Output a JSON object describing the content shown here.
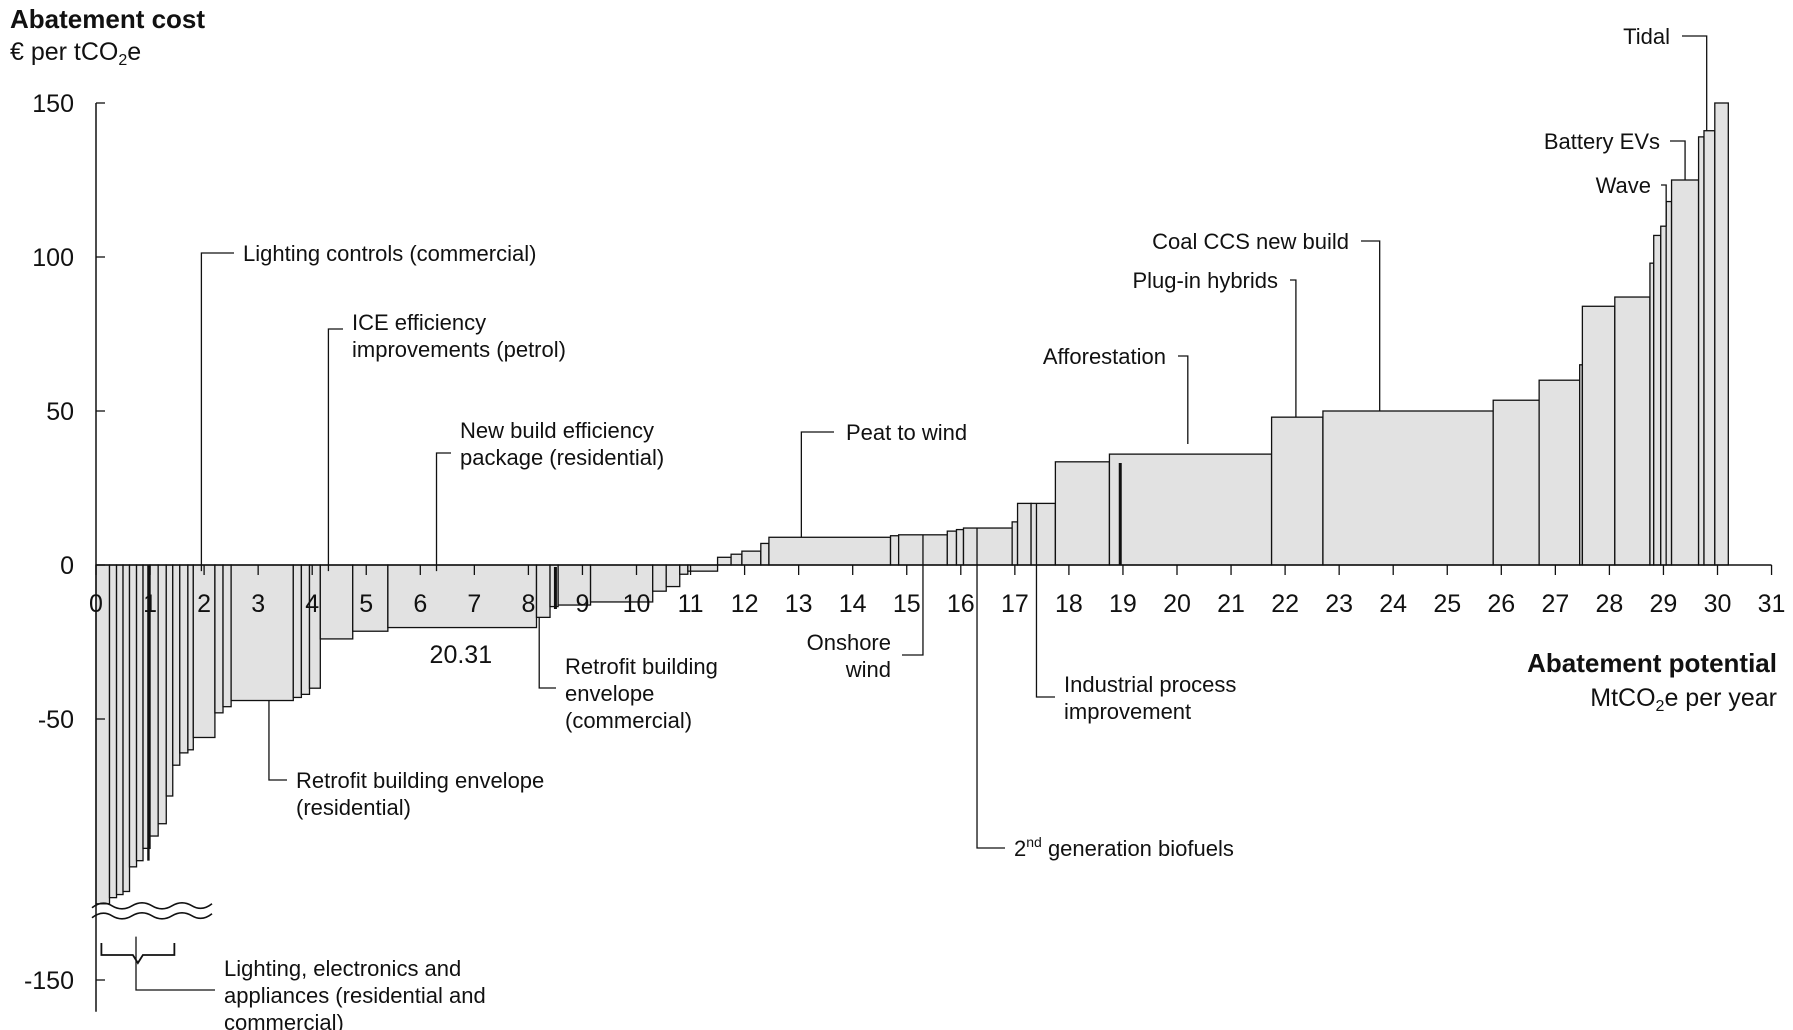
{
  "chart_data": {
    "type": "bar",
    "subtype": "marginal-abatement-cost-curve",
    "y_title": "Abatement cost",
    "y_unit": "€ per tCO2e",
    "x_title": "Abatement potential",
    "x_unit": "MtCO2e per year",
    "ylim": [
      -150,
      150
    ],
    "xlim": [
      0,
      31
    ],
    "yticks": [
      "150",
      "100",
      "50",
      "0",
      "-50",
      "-150"
    ],
    "xticks": [
      "0",
      "1",
      "2",
      "3",
      "4",
      "5",
      "6",
      "7",
      "8",
      "9",
      "10",
      "11",
      "12",
      "13",
      "14",
      "15",
      "16",
      "17",
      "18",
      "19",
      "20",
      "21",
      "22",
      "23",
      "24",
      "25",
      "26",
      "27",
      "27",
      "28",
      "29",
      "30",
      "31"
    ],
    "axis_break": true,
    "annotation_value": "20.31",
    "bars": [
      {
        "x0": 0.0,
        "x1": 0.25,
        "y": -110
      },
      {
        "x0": 0.25,
        "x1": 0.38,
        "y": -108
      },
      {
        "x0": 0.38,
        "x1": 0.5,
        "y": -107
      },
      {
        "x0": 0.5,
        "x1": 0.62,
        "y": -106
      },
      {
        "x0": 0.62,
        "x1": 0.75,
        "y": -98
      },
      {
        "x0": 0.75,
        "x1": 0.87,
        "y": -96
      },
      {
        "x0": 0.87,
        "x1": 1.0,
        "y": -92
      },
      {
        "x0": 1.0,
        "x1": 1.15,
        "y": -88
      },
      {
        "x0": 1.15,
        "x1": 1.3,
        "y": -84
      },
      {
        "x0": 1.3,
        "x1": 1.42,
        "y": -75
      },
      {
        "x0": 1.42,
        "x1": 1.55,
        "y": -65
      },
      {
        "x0": 1.55,
        "x1": 1.7,
        "y": -61
      },
      {
        "x0": 1.7,
        "x1": 1.8,
        "y": -60
      },
      {
        "x0": 1.8,
        "x1": 2.2,
        "y": -56
      },
      {
        "x0": 2.2,
        "x1": 2.35,
        "y": -48
      },
      {
        "x0": 2.35,
        "x1": 2.5,
        "y": -46
      },
      {
        "x0": 2.5,
        "x1": 3.65,
        "y": -44
      },
      {
        "x0": 3.65,
        "x1": 3.8,
        "y": -43
      },
      {
        "x0": 3.8,
        "x1": 3.95,
        "y": -42
      },
      {
        "x0": 3.95,
        "x1": 4.15,
        "y": -40
      },
      {
        "x0": 4.15,
        "x1": 4.75,
        "y": -24
      },
      {
        "x0": 4.75,
        "x1": 5.4,
        "y": -21.5
      },
      {
        "x0": 5.4,
        "x1": 8.15,
        "y": -20.31
      },
      {
        "x0": 8.15,
        "x1": 8.4,
        "y": -17
      },
      {
        "x0": 8.4,
        "x1": 8.55,
        "y": -13.5
      },
      {
        "x0": 8.55,
        "x1": 9.15,
        "y": -13
      },
      {
        "x0": 9.15,
        "x1": 10.3,
        "y": -12
      },
      {
        "x0": 10.3,
        "x1": 10.55,
        "y": -8.5
      },
      {
        "x0": 10.55,
        "x1": 10.8,
        "y": -7
      },
      {
        "x0": 10.8,
        "x1": 10.95,
        "y": -3
      },
      {
        "x0": 10.95,
        "x1": 11.5,
        "y": -2
      },
      {
        "x0": 11.5,
        "x1": 11.75,
        "y": 2.5
      },
      {
        "x0": 11.75,
        "x1": 11.95,
        "y": 3.5
      },
      {
        "x0": 11.95,
        "x1": 12.3,
        "y": 4.5
      },
      {
        "x0": 12.3,
        "x1": 12.45,
        "y": 7
      },
      {
        "x0": 12.45,
        "x1": 14.7,
        "y": 9
      },
      {
        "x0": 14.7,
        "x1": 14.85,
        "y": 9.5
      },
      {
        "x0": 14.85,
        "x1": 15.75,
        "y": 9.8
      },
      {
        "x0": 15.75,
        "x1": 15.92,
        "y": 11
      },
      {
        "x0": 15.92,
        "x1": 16.05,
        "y": 11.5
      },
      {
        "x0": 16.05,
        "x1": 16.95,
        "y": 12
      },
      {
        "x0": 16.95,
        "x1": 17.05,
        "y": 14
      },
      {
        "x0": 17.05,
        "x1": 17.3,
        "y": 20
      },
      {
        "x0": 17.3,
        "x1": 17.75,
        "y": 20
      },
      {
        "x0": 17.75,
        "x1": 18.75,
        "y": 33.5
      },
      {
        "x0": 18.75,
        "x1": 21.75,
        "y": 36
      },
      {
        "x0": 21.75,
        "x1": 22.7,
        "y": 48
      },
      {
        "x0": 22.7,
        "x1": 25.85,
        "y": 50
      },
      {
        "x0": 25.85,
        "x1": 26.7,
        "y": 53.5
      },
      {
        "x0": 26.7,
        "x1": 27.45,
        "y": 60
      },
      {
        "x0": 27.45,
        "x1": 27.5,
        "y": 65
      },
      {
        "x0": 27.5,
        "x1": 28.1,
        "y": 84
      },
      {
        "x0": 28.1,
        "x1": 28.75,
        "y": 87
      },
      {
        "x0": 28.75,
        "x1": 28.82,
        "y": 98
      },
      {
        "x0": 28.82,
        "x1": 28.95,
        "y": 107
      },
      {
        "x0": 28.95,
        "x1": 29.05,
        "y": 110
      },
      {
        "x0": 29.05,
        "x1": 29.15,
        "y": 118
      },
      {
        "x0": 29.15,
        "x1": 29.65,
        "y": 125
      },
      {
        "x0": 29.65,
        "x1": 29.75,
        "y": 139
      },
      {
        "x0": 29.75,
        "x1": 29.95,
        "y": 141
      },
      {
        "x0": 29.95,
        "x1": 30.2,
        "y": 150
      }
    ],
    "levers": [
      {
        "lines": [
          "Lighting controls (commercial)"
        ],
        "x": 1.95,
        "y": -2
      },
      {
        "lines": [
          "ICE efficiency",
          "improvements (petrol)"
        ],
        "x": 4.3,
        "y": -2
      },
      {
        "lines": [
          "New build efficiency",
          "package (residential)"
        ],
        "x": 6.3,
        "y": -2
      },
      {
        "lines": [
          "Peat to wind"
        ],
        "x": 13.05,
        "y": 9
      },
      {
        "lines": [
          "Afforestation"
        ],
        "x": 20.2,
        "y": 36
      },
      {
        "lines": [
          "Plug-in hybrids"
        ],
        "x": 22.2,
        "y": 48
      },
      {
        "lines": [
          "Coal CCS new build"
        ],
        "x": 23.75,
        "y": 50
      },
      {
        "lines": [
          "Wave"
        ],
        "x": 29.05,
        "y": 110
      },
      {
        "lines": [
          "Battery EVs"
        ],
        "x": 29.4,
        "y": 125
      },
      {
        "lines": [
          "Tidal"
        ],
        "x": 29.8,
        "y": 141
      },
      {
        "lines": [
          "Retrofit building envelope",
          "(residential)"
        ],
        "x": 3.2,
        "y": -44
      },
      {
        "lines": [
          "Retrofit building",
          "envelope",
          "(commercial)"
        ],
        "x": 8.2,
        "y": -17
      },
      {
        "lines": [
          "Onshore",
          "wind"
        ],
        "x": 15.3,
        "y": 9.8
      },
      {
        "lines": [
          "Industrial process",
          "improvement"
        ],
        "x": 17.4,
        "y": 20
      },
      {
        "lines": [
          "2nd generation biofuels"
        ],
        "x": 16.3,
        "y": 12
      },
      {
        "lines": [
          "Lighting, electronics and",
          "appliances (residential and",
          "commercial)"
        ],
        "x": 0.75,
        "y": -118
      }
    ]
  }
}
